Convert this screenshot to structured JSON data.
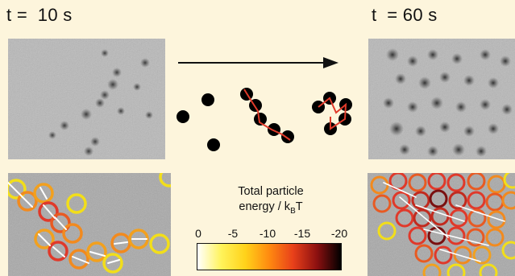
{
  "labels": {
    "left_time": "t =  10 s",
    "right_time": "t  = 60 s"
  },
  "colorbar": {
    "title_line1": "Total particle",
    "title_line2": "energy / k",
    "title_sub": "B",
    "title_tail": "T",
    "ticks": [
      "0",
      "-5",
      "-10",
      "-15",
      "-20"
    ],
    "stops": [
      "#ffffff",
      "#fff35a",
      "#ffd21a",
      "#ff8a10",
      "#e8401a",
      "#8c1010",
      "#000000"
    ]
  },
  "colors": {
    "background": "#fdf5dc",
    "ring_yellow": "#f2de1a",
    "ring_orange": "#f28a1e",
    "ring_red": "#e0392a",
    "ring_dark": "#7a1010",
    "bond": "#e03a2a"
  }
}
